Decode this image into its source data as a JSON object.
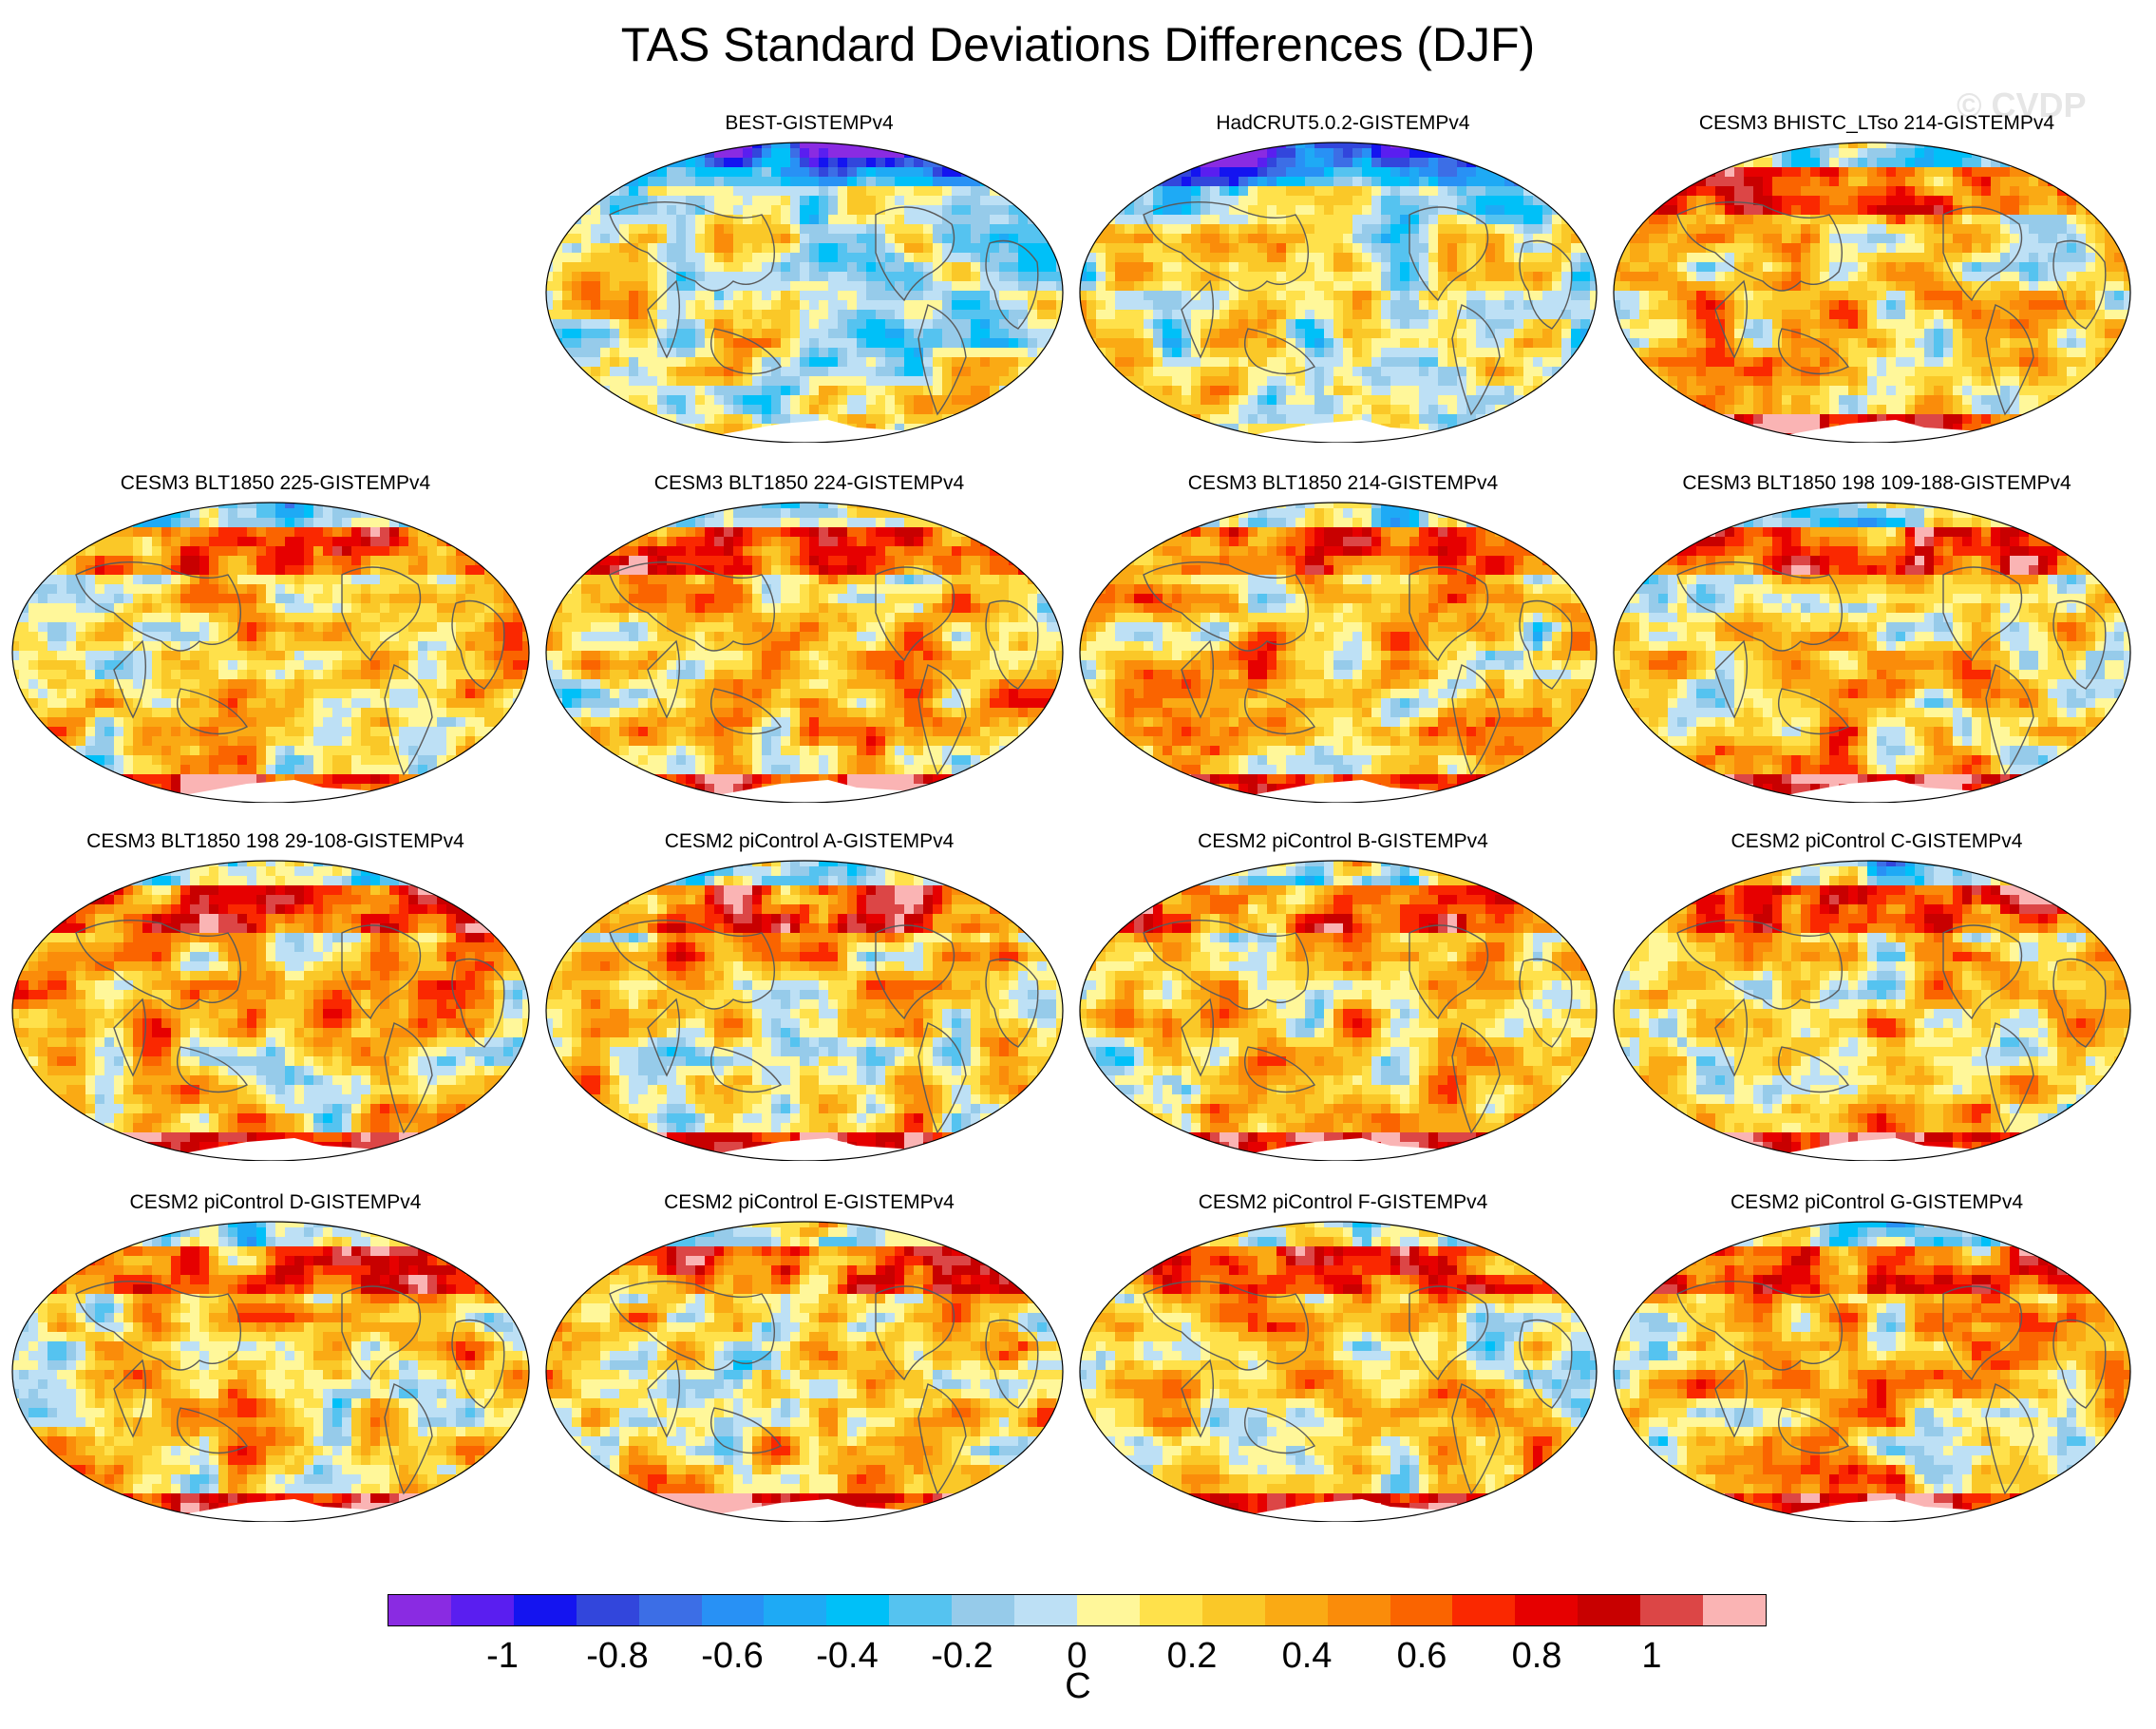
{
  "title": "TAS Standard Deviations Differences (DJF)",
  "watermark": "© CVDP",
  "panels": [
    {
      "title": "BEST-GISTEMPv4",
      "pattern": "obs"
    },
    {
      "title": "HadCRUT5.0.2-GISTEMPv4",
      "pattern": "obs"
    },
    {
      "title": "CESM3 BHISTC_LTso 214-GISTEMPv4",
      "pattern": "model"
    },
    {
      "title": "CESM3 BLT1850 225-GISTEMPv4",
      "pattern": "model"
    },
    {
      "title": "CESM3 BLT1850 224-GISTEMPv4",
      "pattern": "model"
    },
    {
      "title": "CESM3 BLT1850 214-GISTEMPv4",
      "pattern": "model"
    },
    {
      "title": "CESM3 BLT1850 198 109-188-GISTEMPv4",
      "pattern": "model"
    },
    {
      "title": "CESM3 BLT1850 198 29-108-GISTEMPv4",
      "pattern": "model"
    },
    {
      "title": "CESM2 piControl A-GISTEMPv4",
      "pattern": "model"
    },
    {
      "title": "CESM2 piControl B-GISTEMPv4",
      "pattern": "model"
    },
    {
      "title": "CESM2 piControl C-GISTEMPv4",
      "pattern": "model"
    },
    {
      "title": "CESM2 piControl D-GISTEMPv4",
      "pattern": "model"
    },
    {
      "title": "CESM2 piControl E-GISTEMPv4",
      "pattern": "model"
    },
    {
      "title": "CESM2 piControl F-GISTEMPv4",
      "pattern": "model"
    },
    {
      "title": "CESM2 piControl G-GISTEMPv4",
      "pattern": "model"
    }
  ],
  "colorbar": {
    "units": "C",
    "colors": [
      "#8a2be2",
      "#5a1ef0",
      "#1414f0",
      "#3246dc",
      "#3c6ee6",
      "#2891f5",
      "#1eaaf5",
      "#00c0f8",
      "#55c3f0",
      "#96cbea",
      "#bde0f5",
      "#fff79a",
      "#ffe14b",
      "#fac828",
      "#faaa14",
      "#fa8c0a",
      "#fa6400",
      "#fa2800",
      "#e60000",
      "#c80000",
      "#dc4646",
      "#fab4b4"
    ],
    "tick_labels": [
      "-1",
      "-0.8",
      "-0.6",
      "-0.4",
      "-0.2",
      "0",
      "0.2",
      "0.4",
      "0.6",
      "0.8",
      "1"
    ],
    "tick_values": [
      -1,
      -0.8,
      -0.6,
      -0.4,
      -0.2,
      0,
      0.2,
      0.4,
      0.6,
      0.8,
      1
    ],
    "range": [
      -1.2,
      1.2
    ]
  }
}
